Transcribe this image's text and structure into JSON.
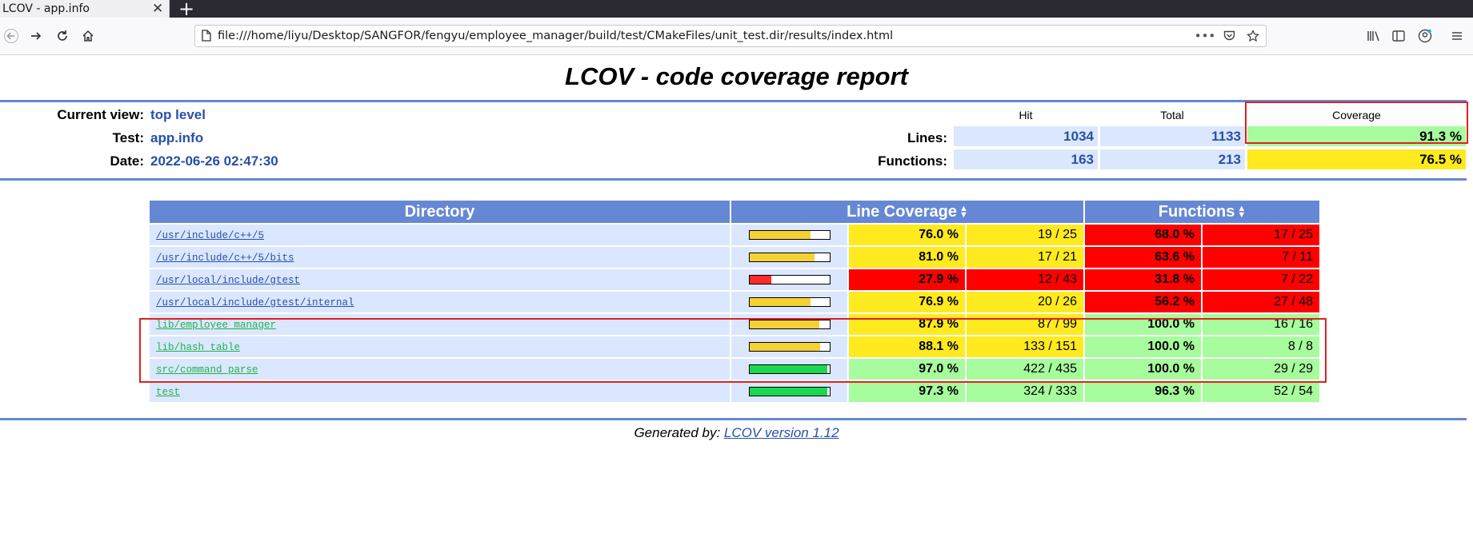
{
  "browser": {
    "tab_title": "LCOV - app.info",
    "url": "file:///home/liyu/Desktop/SANGFOR/fengyu/employee_manager/build/test/CMakeFiles/unit_test.dir/results/index.html"
  },
  "report": {
    "title": "LCOV - code coverage report",
    "current_view_label": "Current view:",
    "current_view_value": "top level",
    "test_label": "Test:",
    "test_value": "app.info",
    "date_label": "Date:",
    "date_value": "2022-06-26 02:47:30",
    "col_hit": "Hit",
    "col_total": "Total",
    "col_coverage": "Coverage",
    "lines_label": "Lines:",
    "lines_hit": "1034",
    "lines_total": "1133",
    "lines_coverage": "91.3 %",
    "functions_label": "Functions:",
    "functions_hit": "163",
    "functions_total": "213",
    "functions_coverage": "76.5 %"
  },
  "table": {
    "headers": {
      "directory": "Directory",
      "line_coverage": "Line Coverage",
      "functions": "Functions"
    },
    "rows": [
      {
        "dir": "/usr/include/c++/5",
        "line_pct": "76.0 %",
        "line_fill": 0.76,
        "line_cnt": "19 / 25",
        "line_level": "yellow",
        "fn_pct": "68.0 %",
        "fn_cnt": "17 / 25",
        "fn_level": "red",
        "link_color": "#284fa8"
      },
      {
        "dir": "/usr/include/c++/5/bits",
        "line_pct": "81.0 %",
        "line_fill": 0.81,
        "line_cnt": "17 / 21",
        "line_level": "yellow",
        "fn_pct": "63.6 %",
        "fn_cnt": "7 / 11",
        "fn_level": "red",
        "link_color": "#284fa8"
      },
      {
        "dir": "/usr/local/include/gtest",
        "line_pct": "27.9 %",
        "line_fill": 0.279,
        "line_cnt": "12 / 43",
        "line_level": "red",
        "fn_pct": "31.8 %",
        "fn_cnt": "7 / 22",
        "fn_level": "red",
        "link_color": "#284fa8"
      },
      {
        "dir": "/usr/local/include/gtest/internal",
        "line_pct": "76.9 %",
        "line_fill": 0.769,
        "line_cnt": "20 / 26",
        "line_level": "yellow",
        "fn_pct": "56.2 %",
        "fn_cnt": "27 / 48",
        "fn_level": "red",
        "link_color": "#284fa8"
      },
      {
        "dir": "lib/employee_manager",
        "line_pct": "87.9 %",
        "line_fill": 0.879,
        "line_cnt": "87 / 99",
        "line_level": "yellow",
        "fn_pct": "100.0 %",
        "fn_cnt": "16 / 16",
        "fn_level": "green",
        "link_color": "#22b14c"
      },
      {
        "dir": "lib/hash_table",
        "line_pct": "88.1 %",
        "line_fill": 0.881,
        "line_cnt": "133 / 151",
        "line_level": "yellow",
        "fn_pct": "100.0 %",
        "fn_cnt": "8 / 8",
        "fn_level": "green",
        "link_color": "#22b14c"
      },
      {
        "dir": "src/command_parse",
        "line_pct": "97.0 %",
        "line_fill": 0.97,
        "line_cnt": "422 / 435",
        "line_level": "green",
        "fn_pct": "100.0 %",
        "fn_cnt": "29 / 29",
        "fn_level": "green",
        "link_color": "#22b14c"
      },
      {
        "dir": "test",
        "line_pct": "97.3 %",
        "line_fill": 0.973,
        "line_cnt": "324 / 333",
        "line_level": "green",
        "fn_pct": "96.3 %",
        "fn_cnt": "52 / 54",
        "fn_level": "green",
        "link_color": "#22b14c"
      }
    ]
  },
  "footer": {
    "prefix": "Generated by: ",
    "link": "LCOV version 1.12"
  },
  "colors": {
    "yellow": "#ffea20",
    "red": "#ff0000",
    "green": "#a7fc9d",
    "bar_yellow": "#f5d133",
    "bar_red": "#ff2a2a",
    "bar_green": "#1ad84f"
  }
}
